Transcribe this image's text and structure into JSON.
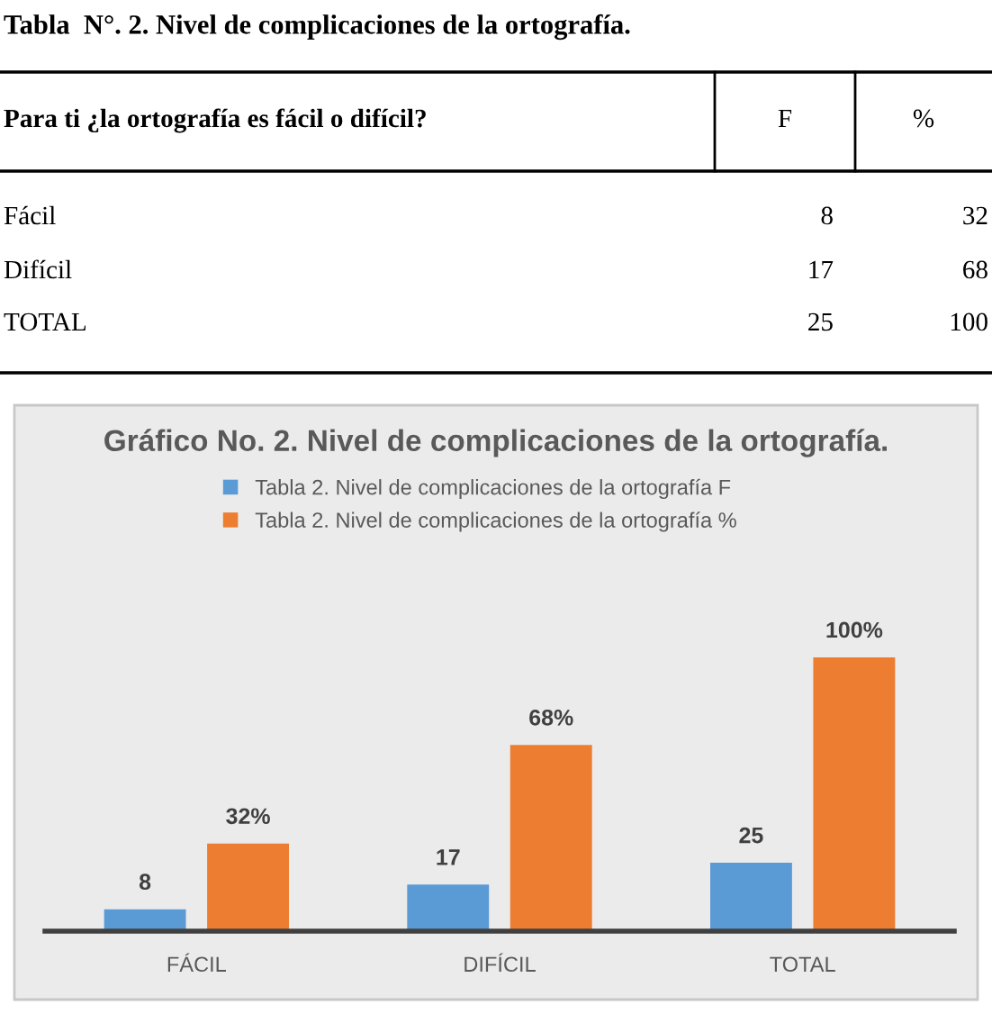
{
  "chart_data": [
    {
      "type": "other",
      "title": "Tabla  N°. 2. Nivel de complicaciones de la ortografía.",
      "annotations": [
        "Para ti ¿la ortografía es fácil o difícil?",
        "F",
        "%",
        "Fácil",
        "8",
        "32",
        "Difícil",
        "17",
        "68",
        "TOTAL",
        "25",
        "100"
      ]
    },
    {
      "type": "bar",
      "title": "Gráfico No. 2. Nivel de complicaciones de la ortografía.",
      "categories": [
        "FÁCIL",
        "DIFÍCIL",
        "TOTAL"
      ],
      "series": [
        {
          "name": "Tabla 2. Nivel de complicaciones de la ortografía F",
          "color": "#5b9bd5",
          "values": [
            8,
            17,
            25
          ],
          "value_labels": [
            "8",
            "17",
            "25"
          ]
        },
        {
          "name": "Tabla 2. Nivel de complicaciones de la ortografía %",
          "color": "#ed7d31",
          "values": [
            32,
            68,
            100
          ],
          "value_labels": [
            "32%",
            "68%",
            "100%"
          ]
        }
      ],
      "legend": "top",
      "grid": false
    }
  ]
}
